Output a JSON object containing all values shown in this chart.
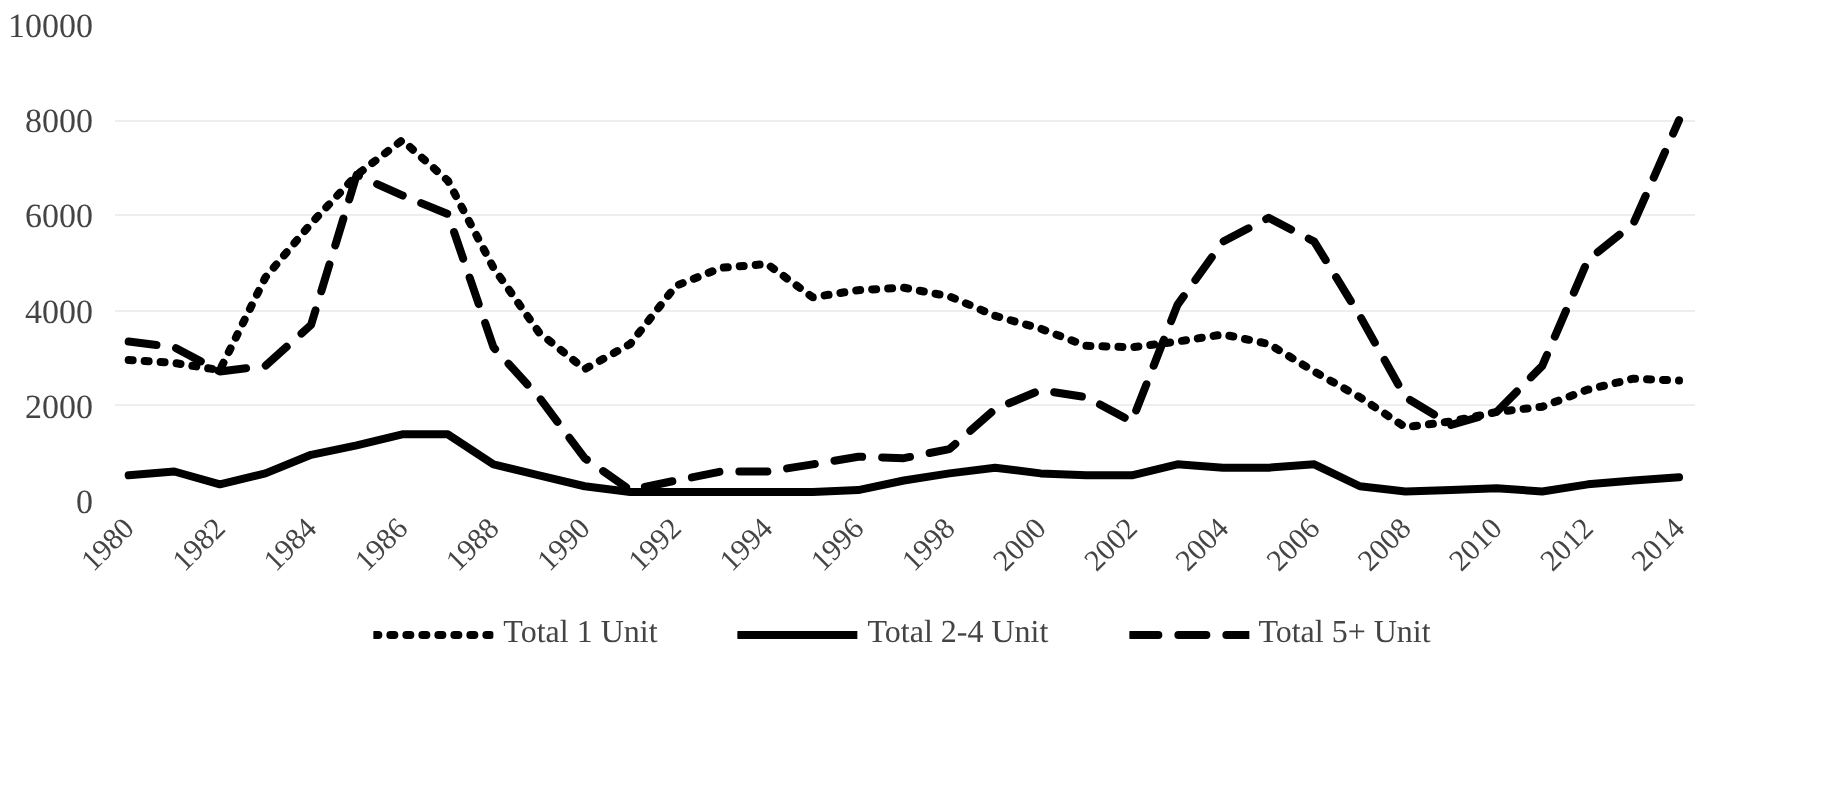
{
  "chart_data": {
    "type": "line",
    "categories": [
      "1980",
      null,
      "1982",
      null,
      "1984",
      null,
      "1986",
      null,
      "1988",
      null,
      "1990",
      null,
      "1992",
      null,
      "1994",
      null,
      "1996",
      null,
      "1998",
      null,
      "2000",
      null,
      "2002",
      null,
      "2004",
      null,
      "2006",
      null,
      "2008",
      null,
      "2010",
      null,
      "2012",
      null,
      "2014"
    ],
    "series": [
      {
        "name": "Total 1 Unit",
        "color": "#000000",
        "line_style": "dotted",
        "values": [
          2960,
          2900,
          2750,
          4700,
          5830,
          6850,
          7580,
          6730,
          4900,
          3540,
          2770,
          3300,
          4520,
          4900,
          4980,
          4280,
          4430,
          4480,
          4300,
          3890,
          3620,
          3260,
          3230,
          3350,
          3500,
          3300,
          2720,
          2180,
          1550,
          1670,
          1870,
          1980,
          2340,
          2570,
          2530
        ]
      },
      {
        "name": "Total 2-4 Unit",
        "color": "#000000",
        "line_style": "solid",
        "values": [
          540,
          620,
          350,
          580,
          970,
          1170,
          1400,
          1400,
          770,
          540,
          310,
          190,
          190,
          190,
          190,
          190,
          230,
          430,
          580,
          700,
          580,
          540,
          540,
          770,
          700,
          700,
          770,
          310,
          200,
          230,
          270,
          200,
          350,
          430,
          500
        ]
      },
      {
        "name": "Total 5+ Unit",
        "color": "#000000",
        "line_style": "dashed",
        "values": [
          3350,
          3230,
          2720,
          2840,
          3700,
          6850,
          6420,
          6030,
          3230,
          2180,
          900,
          230,
          430,
          620,
          620,
          770,
          930,
          900,
          1090,
          1930,
          2330,
          2180,
          1670,
          4120,
          5450,
          5950,
          5450,
          3890,
          2180,
          1600,
          1870,
          2840,
          5060,
          5830,
          8000
        ]
      }
    ],
    "ylim": [
      0,
      10000
    ],
    "yticks": [
      0,
      2000,
      4000,
      6000,
      8000,
      10000
    ],
    "grid": "y",
    "legend": "bottom"
  }
}
